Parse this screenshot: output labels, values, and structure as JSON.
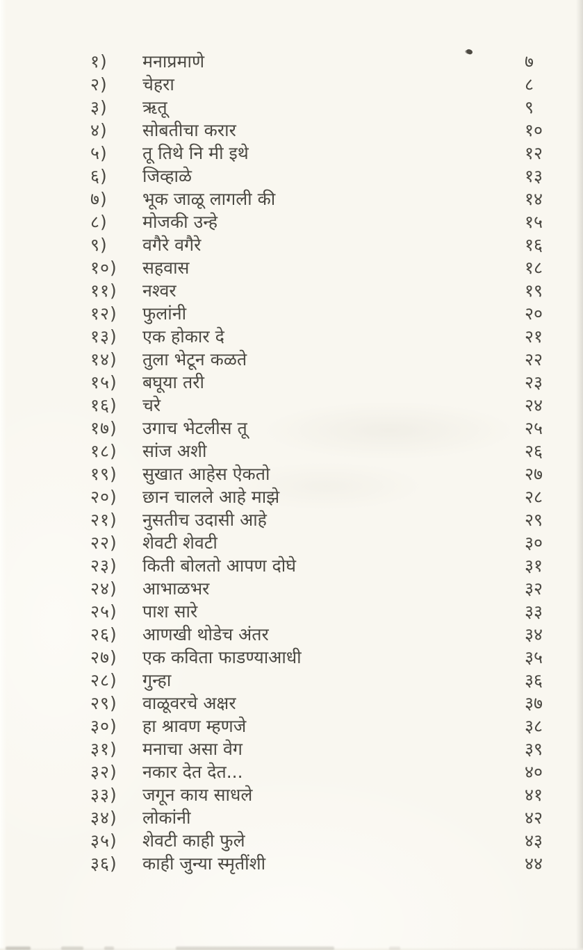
{
  "document": {
    "kind": "scanned-book-toc",
    "language": "Marathi (Devanagari)",
    "page_background": "#f9f7f0",
    "ink_color": "#4a4842"
  },
  "toc": {
    "entries": [
      {
        "num": "१)",
        "title": "मनाप्रमाणे",
        "page": "७"
      },
      {
        "num": "२)",
        "title": "चेहरा",
        "page": "८"
      },
      {
        "num": "३)",
        "title": "ऋतू",
        "page": "९"
      },
      {
        "num": "४)",
        "title": "सोबतीचा करार",
        "page": "१०"
      },
      {
        "num": "५)",
        "title": "तू तिथे नि मी इथे",
        "page": "१२"
      },
      {
        "num": "६)",
        "title": "जिव्हाळे",
        "page": "१३"
      },
      {
        "num": "७)",
        "title": "भूक जाळू लागली की",
        "page": "१४"
      },
      {
        "num": "८)",
        "title": "मोजकी उन्हे",
        "page": "१५"
      },
      {
        "num": "९)",
        "title": "वगैरे वगैरे",
        "page": "१६"
      },
      {
        "num": "१०)",
        "title": "सहवास",
        "page": "१८"
      },
      {
        "num": "११)",
        "title": "नश्वर",
        "page": "१९"
      },
      {
        "num": "१२)",
        "title": "फुलांनी",
        "page": "२०"
      },
      {
        "num": "१३)",
        "title": "एक होकार दे",
        "page": "२१"
      },
      {
        "num": "१४)",
        "title": "तुला भेटून कळते",
        "page": "२२"
      },
      {
        "num": "१५)",
        "title": "बघूया तरी",
        "page": "२३"
      },
      {
        "num": "१६)",
        "title": "चरे",
        "page": "२४"
      },
      {
        "num": "१७)",
        "title": "उगाच भेटलीस तू",
        "page": "२५"
      },
      {
        "num": "१८)",
        "title": "सांज अशी",
        "page": "२६"
      },
      {
        "num": "१९)",
        "title": "सुखात आहेस ऐकतो",
        "page": "२७"
      },
      {
        "num": "२०)",
        "title": "छान चालले आहे माझे",
        "page": "२८"
      },
      {
        "num": "२१)",
        "title": "नुसतीच उदासी आहे",
        "page": "२९"
      },
      {
        "num": "२२)",
        "title": "शेवटी शेवटी",
        "page": "३०"
      },
      {
        "num": "२३)",
        "title": "किती बोलतो आपण दोघे",
        "page": "३१"
      },
      {
        "num": "२४)",
        "title": "आभाळभर",
        "page": "३२"
      },
      {
        "num": "२५)",
        "title": "पाश सारे",
        "page": "३३"
      },
      {
        "num": "२६)",
        "title": "आणखी थोडेच अंतर",
        "page": "३४"
      },
      {
        "num": "२७)",
        "title": "एक कविता फाडण्याआधी",
        "page": "३५"
      },
      {
        "num": "२८)",
        "title": "गुन्हा",
        "page": "३६"
      },
      {
        "num": "२९)",
        "title": "वाळूवरचे अक्षर",
        "page": "३७"
      },
      {
        "num": "३०)",
        "title": "हा श्रावण म्हणजे",
        "page": "३८"
      },
      {
        "num": "३१)",
        "title": "मनाचा असा वेग",
        "page": "३९"
      },
      {
        "num": "३२)",
        "title": "नकार देत देत...",
        "page": "४०"
      },
      {
        "num": "३३)",
        "title": "जगून काय साधले",
        "page": "४१"
      },
      {
        "num": "३४)",
        "title": "लोकांनी",
        "page": "४२"
      },
      {
        "num": "३५)",
        "title": "शेवटी काही फुले",
        "page": "४३"
      },
      {
        "num": "३६)",
        "title": "काही जुन्या स्मृतींशी",
        "page": "४४"
      }
    ]
  }
}
